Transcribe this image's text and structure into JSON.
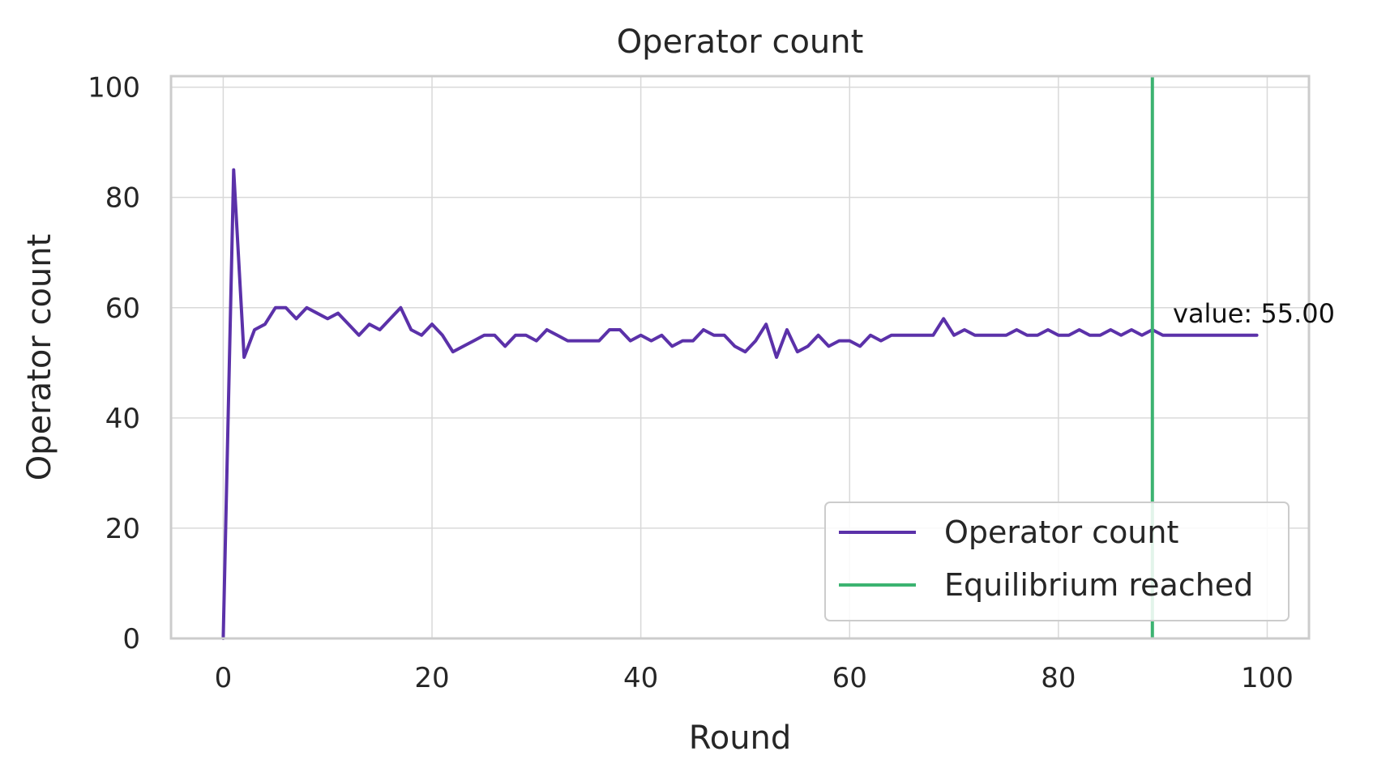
{
  "chart_data": {
    "type": "line",
    "title": "Operator count",
    "xlabel": "Round",
    "ylabel": "Operator count",
    "xlim": [
      -5,
      104
    ],
    "ylim": [
      0,
      102
    ],
    "xticks": [
      0,
      20,
      40,
      60,
      80,
      100
    ],
    "yticks": [
      0,
      20,
      40,
      60,
      80,
      100
    ],
    "grid": true,
    "legend_position": "lower-right",
    "series": [
      {
        "name": "Operator count",
        "color": "#5b31a9",
        "x": [
          0,
          1,
          2,
          3,
          4,
          5,
          6,
          7,
          8,
          9,
          10,
          11,
          12,
          13,
          14,
          15,
          16,
          17,
          18,
          19,
          20,
          21,
          22,
          23,
          24,
          25,
          26,
          27,
          28,
          29,
          30,
          31,
          32,
          33,
          34,
          35,
          36,
          37,
          38,
          39,
          40,
          41,
          42,
          43,
          44,
          45,
          46,
          47,
          48,
          49,
          50,
          51,
          52,
          53,
          54,
          55,
          56,
          57,
          58,
          59,
          60,
          61,
          62,
          63,
          64,
          65,
          66,
          67,
          68,
          69,
          70,
          71,
          72,
          73,
          74,
          75,
          76,
          77,
          78,
          79,
          80,
          81,
          82,
          83,
          84,
          85,
          86,
          87,
          88,
          89,
          90,
          91,
          92,
          93,
          94,
          95,
          96,
          97,
          98,
          99
        ],
        "y": [
          0,
          85,
          51,
          56,
          57,
          60,
          60,
          58,
          60,
          59,
          58,
          59,
          57,
          55,
          57,
          56,
          58,
          60,
          56,
          55,
          57,
          55,
          52,
          53,
          54,
          55,
          55,
          53,
          55,
          55,
          54,
          56,
          55,
          54,
          54,
          54,
          54,
          56,
          56,
          54,
          55,
          54,
          55,
          53,
          54,
          54,
          56,
          55,
          55,
          53,
          52,
          54,
          57,
          51,
          56,
          52,
          53,
          55,
          53,
          54,
          54,
          53,
          55,
          54,
          55,
          55,
          55,
          55,
          55,
          58,
          55,
          56,
          55,
          55,
          55,
          55,
          56,
          55,
          55,
          56,
          55,
          55,
          56,
          55,
          55,
          56,
          55,
          56,
          55,
          56,
          55,
          55,
          55,
          55,
          55,
          55,
          55,
          55,
          55,
          55
        ]
      }
    ],
    "vlines": [
      {
        "name": "Equilibrium reached",
        "x": 89,
        "color": "#3cb371"
      }
    ],
    "annotations": [
      {
        "text": "value: 55.00",
        "x": 91,
        "y": 57
      }
    ]
  }
}
